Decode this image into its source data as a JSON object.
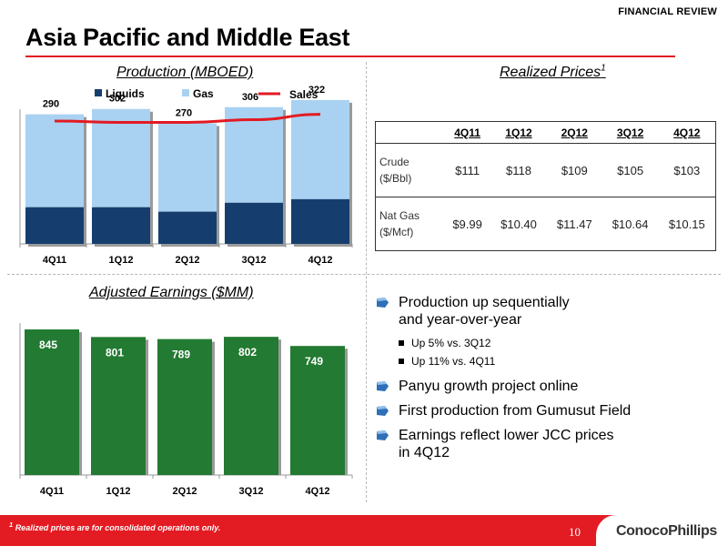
{
  "header": {
    "tag": "FINANCIAL REVIEW",
    "title": "Asia Pacific and Middle East"
  },
  "production": {
    "title": "Production (MBOED)",
    "legend": {
      "liquids": "Liquids",
      "gas": "Gas",
      "sales": "Sales"
    }
  },
  "prices": {
    "title": "Realized Prices",
    "title_sup": "1",
    "columns": [
      "4Q11",
      "1Q12",
      "2Q12",
      "3Q12",
      "4Q12"
    ],
    "rows": [
      {
        "label1": "Crude",
        "label2": "($/Bbl)",
        "values": [
          "$111",
          "$118",
          "$109",
          "$105",
          "$103"
        ]
      },
      {
        "label1": "Nat Gas",
        "label2": "($/Mcf)",
        "values": [
          "$9.99",
          "$10.40",
          "$11.47",
          "$10.64",
          "$10.15"
        ]
      }
    ]
  },
  "earnings": {
    "title": "Adjusted Earnings ($MM)"
  },
  "bullets": {
    "b1": "Production up sequentially",
    "b1b": "and year-over-year",
    "s1": "Up 5% vs. 3Q12",
    "s2": "Up 11% vs. 4Q11",
    "b2": "Panyu growth project online",
    "b3": "First production from Gumusut Field",
    "b4": "Earnings reflect lower JCC prices",
    "b4b": "in 4Q12"
  },
  "footer": {
    "note": "Realized prices are for consolidated operations only.",
    "note_sup": "1",
    "page": "10",
    "logo": "ConocoPhillips"
  },
  "colors": {
    "liquids": "#153e6e",
    "gas": "#a9d2f2",
    "sales_line": "#e31b23",
    "earnings_bar": "#237a32",
    "accent_red": "#e31b23"
  },
  "chart_data": [
    {
      "type": "bar",
      "stacked": true,
      "title": "Production (MBOED)",
      "categories": [
        "4Q11",
        "1Q12",
        "2Q12",
        "3Q12",
        "4Q12"
      ],
      "totals": [
        290,
        302,
        270,
        306,
        322
      ],
      "series": [
        {
          "name": "Liquids",
          "values": [
            82,
            82,
            72,
            92,
            100
          ]
        },
        {
          "name": "Gas",
          "values": [
            208,
            220,
            198,
            214,
            222
          ]
        }
      ],
      "line_series": {
        "name": "Sales",
        "values": [
          275,
          272,
          272,
          278,
          290
        ]
      },
      "ylim": [
        0,
        330
      ],
      "legend": "top"
    },
    {
      "type": "bar",
      "title": "Adjusted Earnings ($MM)",
      "categories": [
        "4Q11",
        "1Q12",
        "2Q12",
        "3Q12",
        "4Q12"
      ],
      "values": [
        845,
        801,
        789,
        802,
        749
      ],
      "ylim": [
        0,
        845
      ]
    }
  ]
}
